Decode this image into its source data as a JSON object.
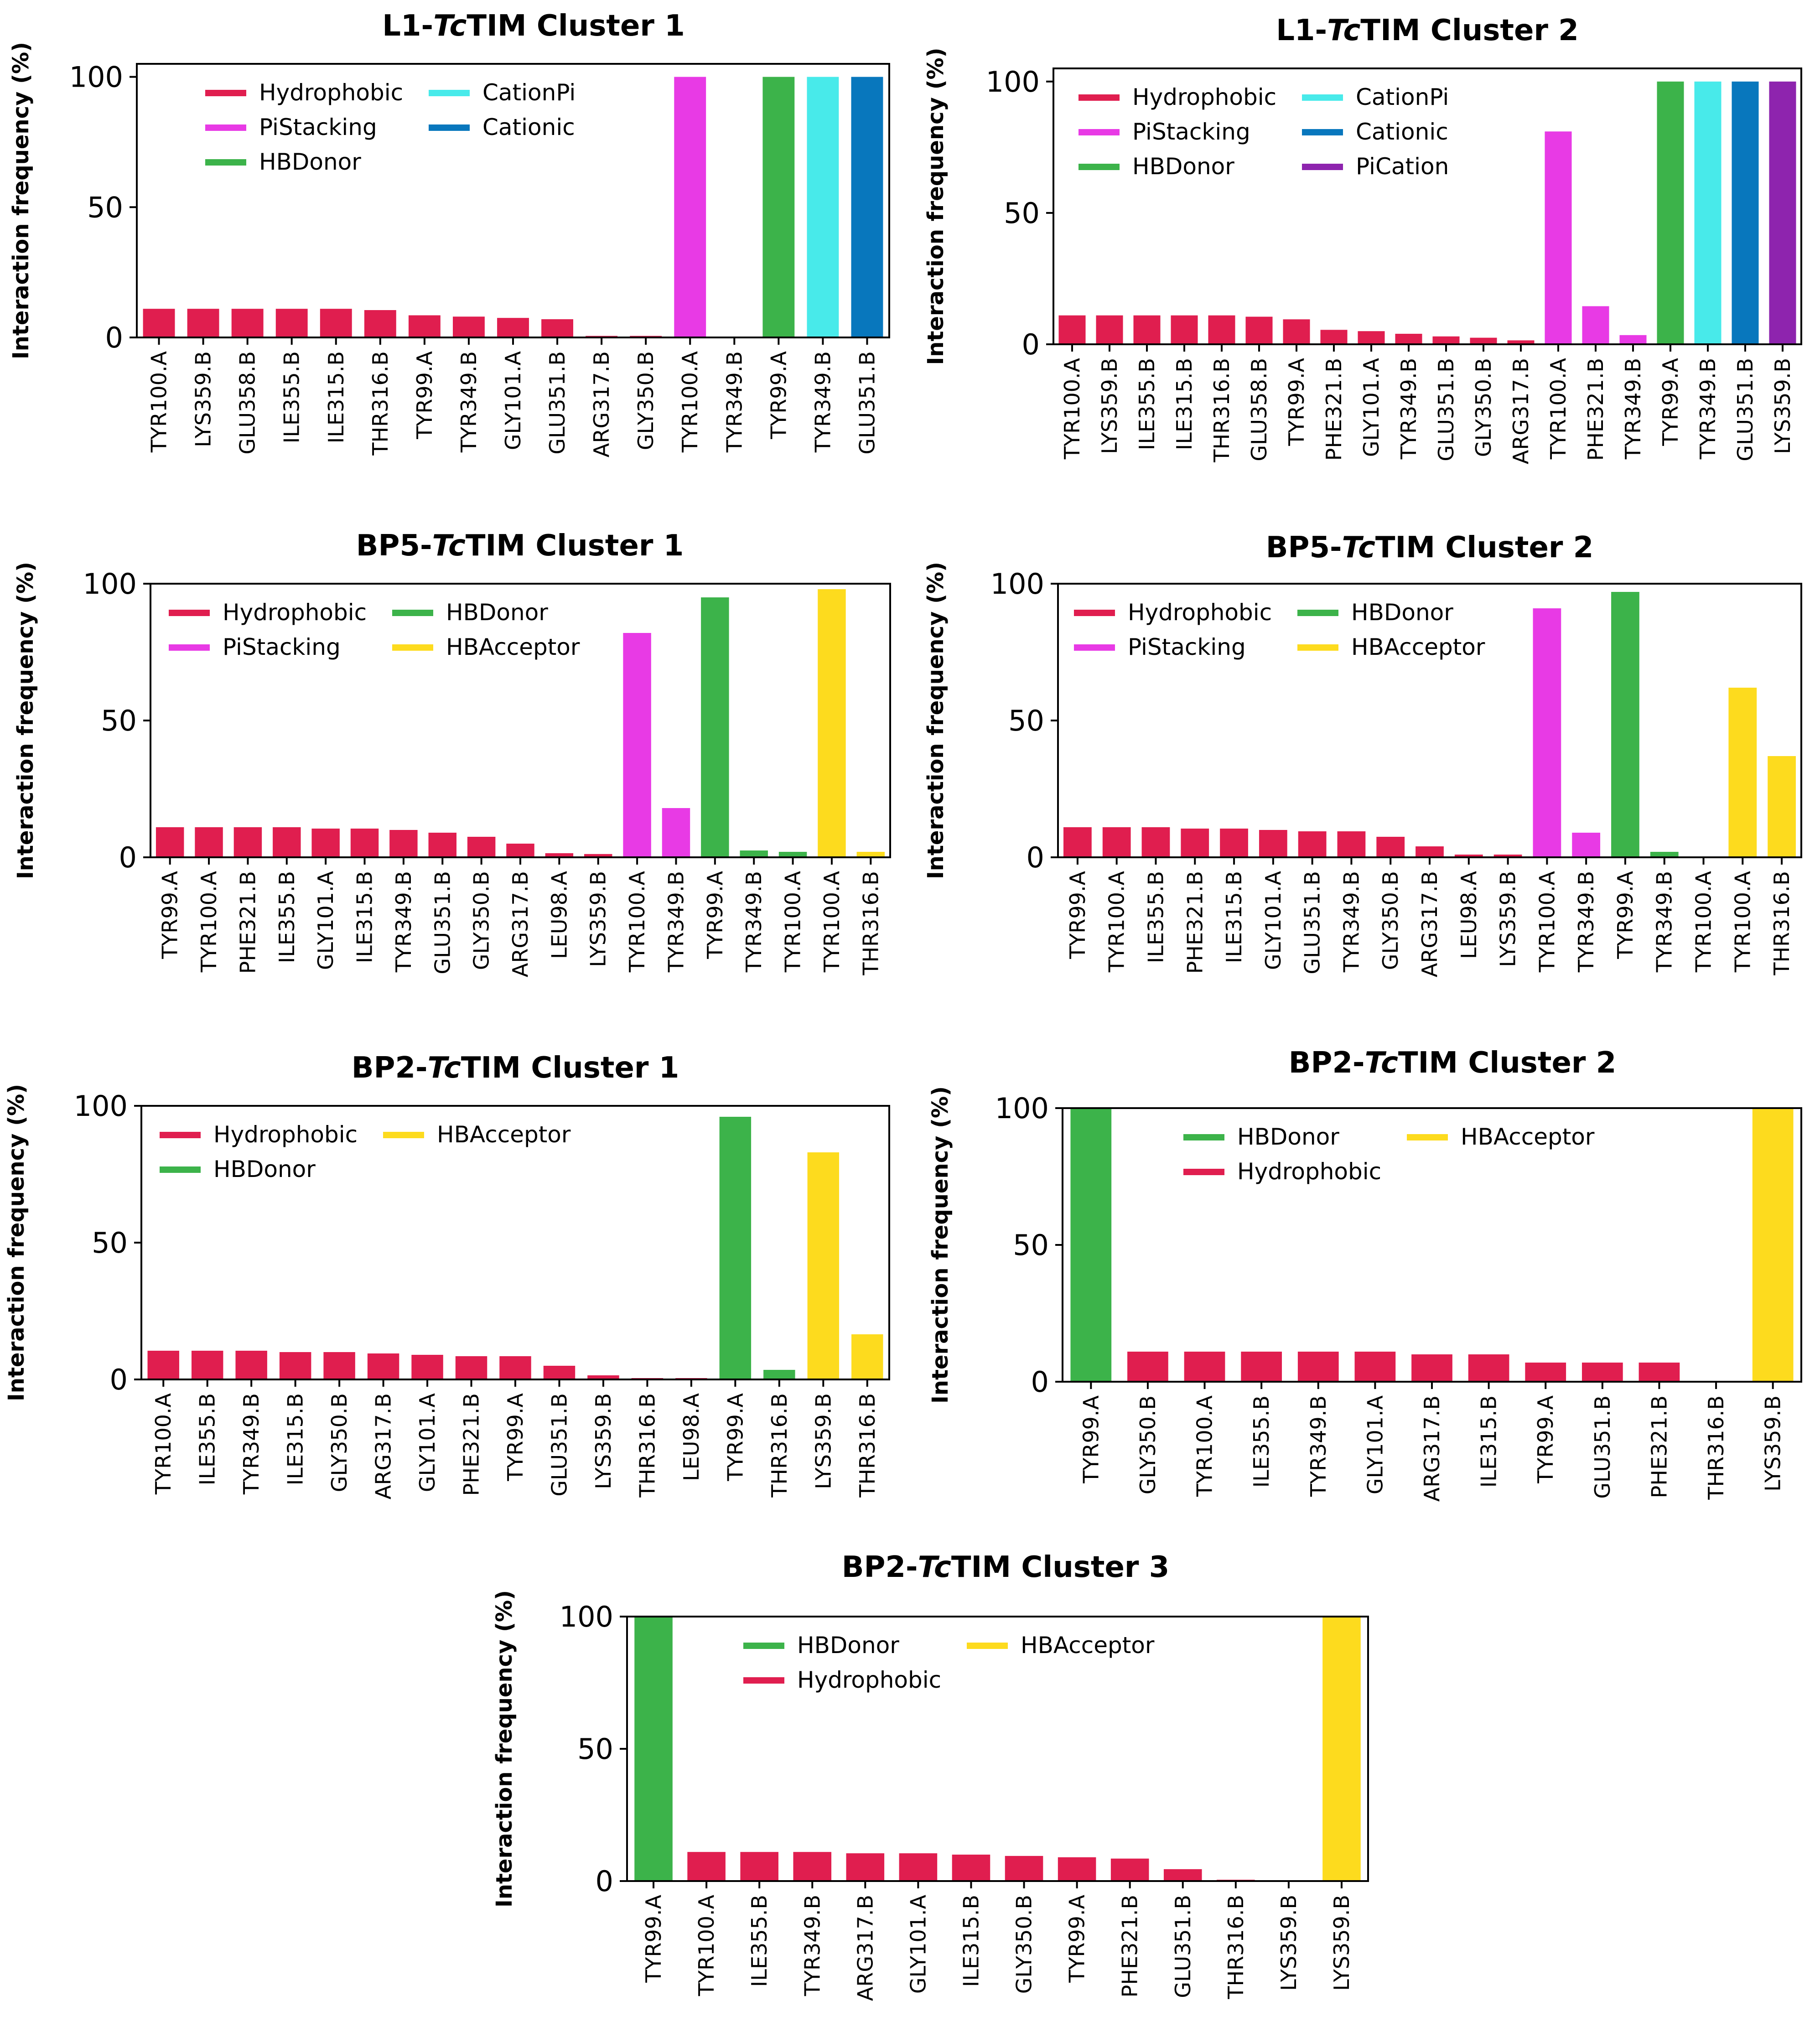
{
  "colors": {
    "Hydrophobic": "#e01e4f",
    "PiStacking": "#e83ae5",
    "HBDonor": "#3cb34a",
    "HBAcceptor": "#fddb1e",
    "CationPi": "#48eaea",
    "Cationic": "#0877bd",
    "PiCation": "#8e24ae"
  },
  "ylabel": "Interaction frequency (%)",
  "chart_data": [
    {
      "type": "bar",
      "title_prefix": "L1-",
      "title_italic": "Tc",
      "title_suffix": "TIM   Cluster 1",
      "ylim": [
        0,
        105
      ],
      "yticks": [
        0,
        50,
        100
      ],
      "legend": [
        [
          "Hydrophobic",
          "CationPi"
        ],
        [
          "PiStacking",
          "Cationic"
        ],
        [
          "HBDonor"
        ]
      ],
      "categories": [
        "TYR100.A",
        "LYS359.B",
        "GLU358.B",
        "ILE355.B",
        "ILE315.B",
        "THR316.B",
        "TYR99.A",
        "TYR349.B",
        "GLY101.A",
        "GLU351.B",
        "ARG317.B",
        "GLY350.B",
        "TYR100.A",
        "TYR349.B",
        "TYR99.A",
        "TYR349.B",
        "GLU351.B"
      ],
      "values": [
        11,
        11,
        11,
        11,
        11,
        10.5,
        8.5,
        8,
        7.5,
        7,
        0.6,
        0.6,
        100,
        0,
        100,
        100,
        100
      ],
      "types": [
        "Hydrophobic",
        "Hydrophobic",
        "Hydrophobic",
        "Hydrophobic",
        "Hydrophobic",
        "Hydrophobic",
        "Hydrophobic",
        "Hydrophobic",
        "Hydrophobic",
        "Hydrophobic",
        "Hydrophobic",
        "Hydrophobic",
        "PiStacking",
        "PiStacking",
        "HBDonor",
        "CationPi",
        "Cationic"
      ]
    },
    {
      "type": "bar",
      "title_prefix": "L1-",
      "title_italic": "Tc",
      "title_suffix": "TIM   Cluster 2",
      "ylim": [
        0,
        105
      ],
      "yticks": [
        0,
        50,
        100
      ],
      "legend": [
        [
          "Hydrophobic",
          "CationPi"
        ],
        [
          "PiStacking",
          "Cationic"
        ],
        [
          "HBDonor",
          "PiCation"
        ]
      ],
      "categories": [
        "TYR100.A",
        "LYS359.B",
        "ILE355.B",
        "ILE315.B",
        "THR316.B",
        "GLU358.B",
        "TYR99.A",
        "PHE321.B",
        "GLY101.A",
        "TYR349.B",
        "GLU351.B",
        "GLY350.B",
        "ARG317.B",
        "TYR100.A",
        "PHE321.B",
        "TYR349.B",
        "TYR99.A",
        "TYR349.B",
        "GLU351.B",
        "LYS359.B"
      ],
      "values": [
        11,
        11,
        11,
        11,
        11,
        10.5,
        9.5,
        5.5,
        5,
        4,
        3,
        2.5,
        1.5,
        81,
        14.5,
        3.5,
        100,
        100,
        100,
        100
      ],
      "types": [
        "Hydrophobic",
        "Hydrophobic",
        "Hydrophobic",
        "Hydrophobic",
        "Hydrophobic",
        "Hydrophobic",
        "Hydrophobic",
        "Hydrophobic",
        "Hydrophobic",
        "Hydrophobic",
        "Hydrophobic",
        "Hydrophobic",
        "Hydrophobic",
        "PiStacking",
        "PiStacking",
        "PiStacking",
        "HBDonor",
        "CationPi",
        "Cationic",
        "PiCation"
      ]
    },
    {
      "type": "bar",
      "title_prefix": "BP5-",
      "title_italic": "Tc",
      "title_suffix": "TIM   Cluster 1",
      "ylim": [
        0,
        100
      ],
      "yticks": [
        0,
        50,
        100
      ],
      "legend": [
        [
          "Hydrophobic",
          "HBDonor"
        ],
        [
          "PiStacking",
          "HBAcceptor"
        ]
      ],
      "categories": [
        "TYR99.A",
        "TYR100.A",
        "PHE321.B",
        "ILE355.B",
        "GLY101.A",
        "ILE315.B",
        "TYR349.B",
        "GLU351.B",
        "GLY350.B",
        "ARG317.B",
        "LEU98.A",
        "LYS359.B",
        "TYR100.A",
        "TYR349.B",
        "TYR99.A",
        "TYR349.B",
        "TYR100.A",
        "TYR100.A",
        "THR316.B"
      ],
      "values": [
        11,
        11,
        11,
        11,
        10.5,
        10.5,
        10,
        9,
        7.5,
        5,
        1.5,
        1.2,
        82,
        18,
        95,
        2.5,
        2,
        98,
        2
      ],
      "types": [
        "Hydrophobic",
        "Hydrophobic",
        "Hydrophobic",
        "Hydrophobic",
        "Hydrophobic",
        "Hydrophobic",
        "Hydrophobic",
        "Hydrophobic",
        "Hydrophobic",
        "Hydrophobic",
        "Hydrophobic",
        "Hydrophobic",
        "PiStacking",
        "PiStacking",
        "HBDonor",
        "HBDonor",
        "HBDonor",
        "HBAcceptor",
        "HBAcceptor"
      ]
    },
    {
      "type": "bar",
      "title_prefix": "BP5-",
      "title_italic": "Tc",
      "title_suffix": "TIM   Cluster 2",
      "ylim": [
        0,
        100
      ],
      "yticks": [
        0,
        50,
        100
      ],
      "legend": [
        [
          "Hydrophobic",
          "HBDonor"
        ],
        [
          "PiStacking",
          "HBAcceptor"
        ]
      ],
      "categories": [
        "TYR99.A",
        "TYR100.A",
        "ILE355.B",
        "PHE321.B",
        "ILE315.B",
        "GLY101.A",
        "GLU351.B",
        "TYR349.B",
        "GLY350.B",
        "ARG317.B",
        "LEU98.A",
        "LYS359.B",
        "TYR100.A",
        "TYR349.B",
        "TYR99.A",
        "TYR349.B",
        "TYR100.A",
        "TYR100.A",
        "THR316.B"
      ],
      "values": [
        11,
        11,
        11,
        10.5,
        10.5,
        10,
        9.5,
        9.5,
        7.5,
        4,
        1,
        1,
        91,
        9,
        97,
        2,
        0,
        62,
        37
      ],
      "types": [
        "Hydrophobic",
        "Hydrophobic",
        "Hydrophobic",
        "Hydrophobic",
        "Hydrophobic",
        "Hydrophobic",
        "Hydrophobic",
        "Hydrophobic",
        "Hydrophobic",
        "Hydrophobic",
        "Hydrophobic",
        "Hydrophobic",
        "PiStacking",
        "PiStacking",
        "HBDonor",
        "HBDonor",
        "HBDonor",
        "HBAcceptor",
        "HBAcceptor"
      ]
    },
    {
      "type": "bar",
      "title_prefix": "BP2-",
      "title_italic": "Tc",
      "title_suffix": "TIM   Cluster 1",
      "ylim": [
        0,
        100
      ],
      "yticks": [
        0,
        50,
        100
      ],
      "legend": [
        [
          "Hydrophobic",
          "HBAcceptor"
        ],
        [
          "HBDonor"
        ]
      ],
      "categories": [
        "TYR100.A",
        "ILE355.B",
        "TYR349.B",
        "ILE315.B",
        "GLY350.B",
        "ARG317.B",
        "GLY101.A",
        "PHE321.B",
        "TYR99.A",
        "GLU351.B",
        "LYS359.B",
        "THR316.B",
        "LEU98.A",
        "TYR99.A",
        "THR316.B",
        "LYS359.B",
        "THR316.B"
      ],
      "values": [
        10.5,
        10.5,
        10.5,
        10,
        10,
        9.5,
        9,
        8.5,
        8.5,
        5,
        1.5,
        0.5,
        0.5,
        96,
        3.5,
        83,
        16.5
      ],
      "types": [
        "Hydrophobic",
        "Hydrophobic",
        "Hydrophobic",
        "Hydrophobic",
        "Hydrophobic",
        "Hydrophobic",
        "Hydrophobic",
        "Hydrophobic",
        "Hydrophobic",
        "Hydrophobic",
        "Hydrophobic",
        "Hydrophobic",
        "Hydrophobic",
        "HBDonor",
        "HBDonor",
        "HBAcceptor",
        "HBAcceptor"
      ]
    },
    {
      "type": "bar",
      "title_prefix": "BP2-",
      "title_italic": "Tc",
      "title_suffix": "TIM   Cluster 2",
      "ylim": [
        0,
        100
      ],
      "yticks": [
        0,
        50,
        100
      ],
      "legend": [
        [
          "HBDonor",
          "HBAcceptor"
        ],
        [
          "Hydrophobic"
        ]
      ],
      "categories": [
        "TYR99.A",
        "GLY350.B",
        "TYR100.A",
        "ILE355.B",
        "TYR349.B",
        "GLY101.A",
        "ARG317.B",
        "ILE315.B",
        "TYR99.A",
        "GLU351.B",
        "PHE321.B",
        "THR316.B",
        "LYS359.B"
      ],
      "values": [
        100,
        11,
        11,
        11,
        11,
        11,
        10,
        10,
        7,
        7,
        7,
        0,
        100
      ],
      "types": [
        "HBDonor",
        "Hydrophobic",
        "Hydrophobic",
        "Hydrophobic",
        "Hydrophobic",
        "Hydrophobic",
        "Hydrophobic",
        "Hydrophobic",
        "Hydrophobic",
        "Hydrophobic",
        "Hydrophobic",
        "Hydrophobic",
        "HBAcceptor"
      ]
    },
    {
      "type": "bar",
      "title_prefix": "BP2-",
      "title_italic": "Tc",
      "title_suffix": "TIM   Cluster 3",
      "ylim": [
        0,
        100
      ],
      "yticks": [
        0,
        50,
        100
      ],
      "legend": [
        [
          "HBDonor",
          "HBAcceptor"
        ],
        [
          "Hydrophobic"
        ]
      ],
      "categories": [
        "TYR99.A",
        "TYR100.A",
        "ILE355.B",
        "TYR349.B",
        "ARG317.B",
        "GLY101.A",
        "ILE315.B",
        "GLY350.B",
        "TYR99.A",
        "PHE321.B",
        "GLU351.B",
        "THR316.B",
        "LYS359.B",
        "LYS359.B"
      ],
      "values": [
        100,
        11,
        11,
        11,
        10.5,
        10.5,
        10,
        9.5,
        9,
        8.5,
        4.5,
        0.5,
        0,
        100
      ],
      "types": [
        "HBDonor",
        "Hydrophobic",
        "Hydrophobic",
        "Hydrophobic",
        "Hydrophobic",
        "Hydrophobic",
        "Hydrophobic",
        "Hydrophobic",
        "Hydrophobic",
        "Hydrophobic",
        "Hydrophobic",
        "Hydrophobic",
        "Hydrophobic",
        "HBAcceptor"
      ]
    }
  ]
}
